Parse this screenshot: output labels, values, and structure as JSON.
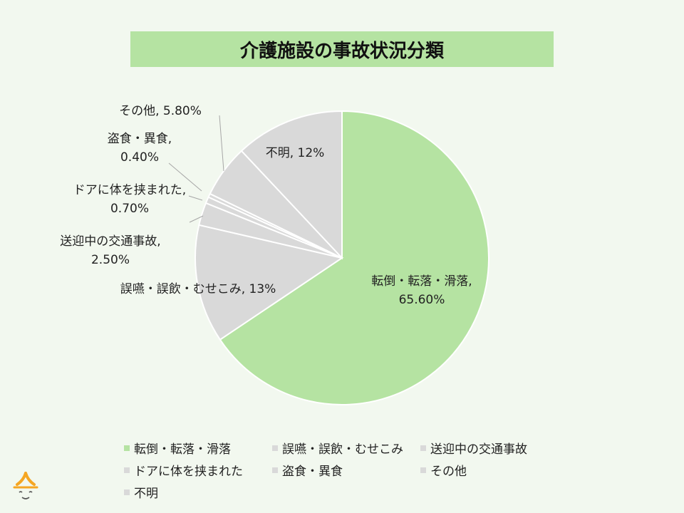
{
  "chart_data": {
    "type": "pie",
    "title": "介護施設の事故状況分類",
    "slices": [
      {
        "name": "転倒・転落・滑落",
        "value": 65.6,
        "label_lines": [
          "転倒・転落・滑落,",
          "65.60%"
        ],
        "color": "#b5e3a2"
      },
      {
        "name": "誤嚥・誤飲・むせこみ",
        "value": 13,
        "label_lines": [
          "誤嚥・誤飲・むせこみ, 13%"
        ],
        "color": "#d9d9d9"
      },
      {
        "name": "送迎中の交通事故",
        "value": 2.5,
        "label_lines": [
          "送迎中の交通事故,",
          "2.50%"
        ],
        "color": "#d9d9d9"
      },
      {
        "name": "ドアに体を挟まれた",
        "value": 0.7,
        "label_lines": [
          "ドアに体を挟まれた,",
          "0.70%"
        ],
        "color": "#d9d9d9"
      },
      {
        "name": "盗食・異食",
        "value": 0.4,
        "label_lines": [
          "盗食・異食,",
          "0.40%"
        ],
        "color": "#d9d9d9"
      },
      {
        "name": "その他",
        "value": 5.8,
        "label_lines": [
          "その他, 5.80%"
        ],
        "color": "#d9d9d9"
      },
      {
        "name": "不明",
        "value": 12,
        "label_lines": [
          "不明, 12%"
        ],
        "color": "#d9d9d9"
      }
    ],
    "legend_position": "bottom"
  },
  "logo_icon": "face-logo-icon",
  "border_color": "#ffffff"
}
